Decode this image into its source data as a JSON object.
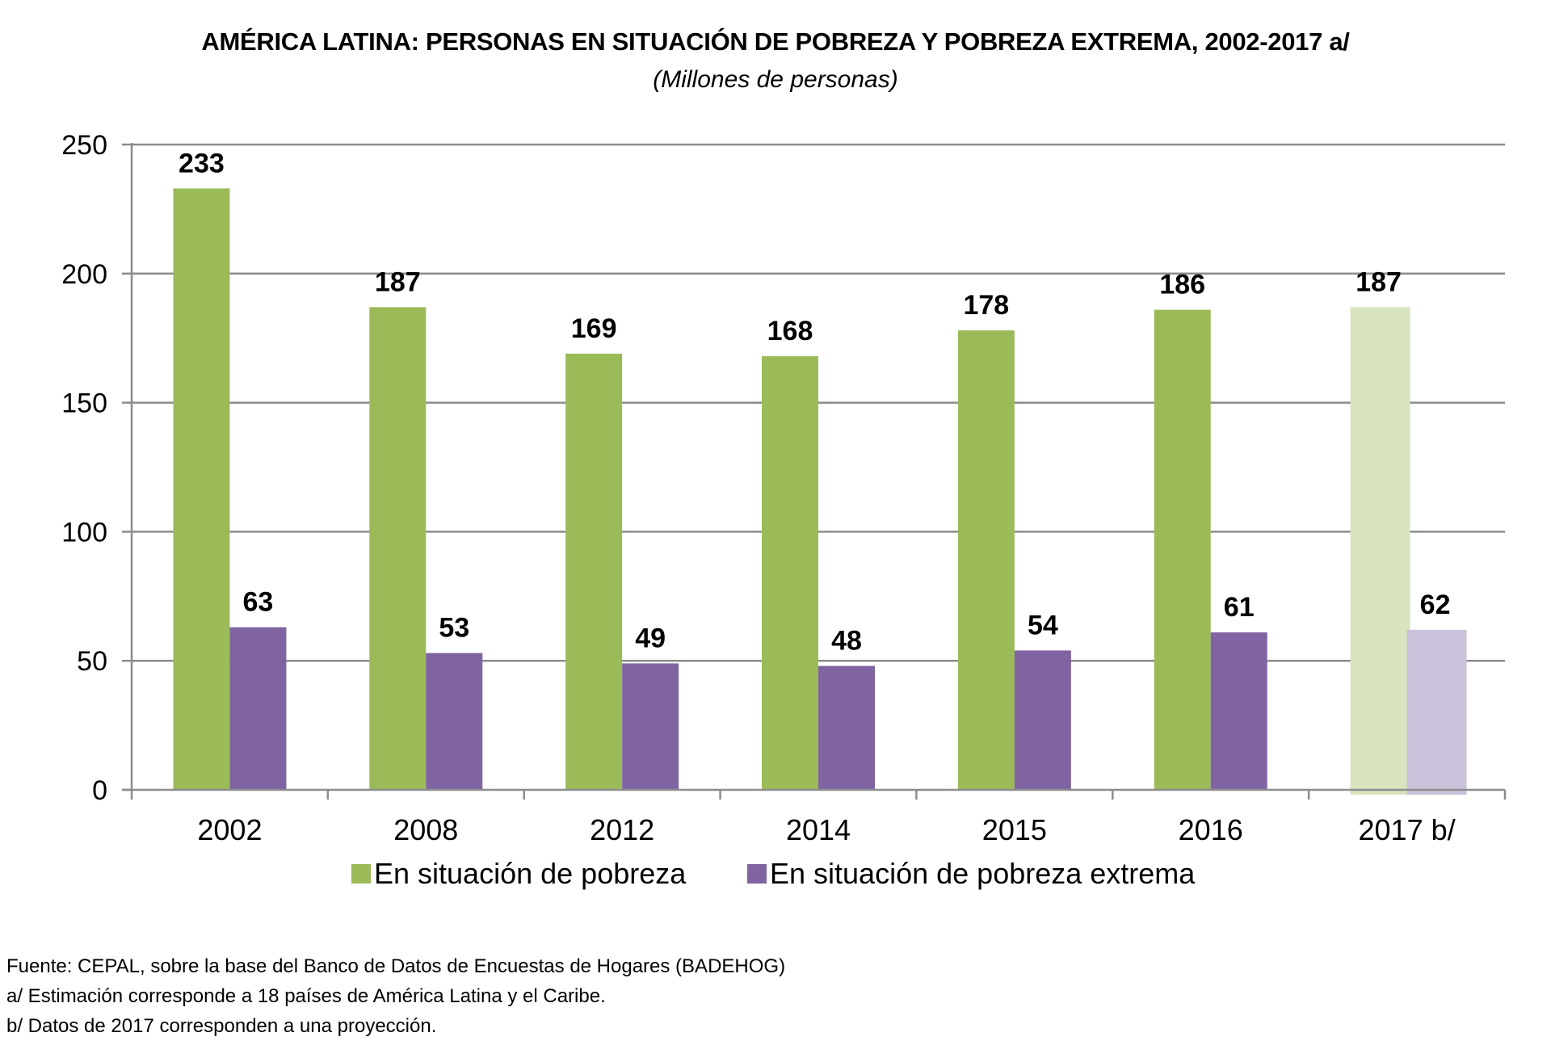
{
  "chart_data": {
    "type": "bar",
    "title": "AMÉRICA LATINA: PERSONAS EN SITUACIÓN DE POBREZA Y POBREZA EXTREMA, 2002-2017 a/",
    "subtitle": "(Millones de personas)",
    "categories": [
      "2002",
      "2008",
      "2012",
      "2014",
      "2015",
      "2016",
      "2017 b/"
    ],
    "ylim": [
      0,
      250
    ],
    "yticks": [
      0,
      50,
      100,
      150,
      200,
      250
    ],
    "grid": true,
    "legend_position": "bottom",
    "projected_category_index": 6,
    "series": [
      {
        "name": "En situación de pobreza",
        "values": [
          233,
          187,
          169,
          168,
          178,
          186,
          187
        ],
        "color": "#9bbb59",
        "projected_color": "#d7e4bd"
      },
      {
        "name": "En situación de pobreza extrema",
        "values": [
          63,
          53,
          49,
          48,
          54,
          61,
          62
        ],
        "color": "#8064a2",
        "projected_color": "#ccc1da"
      }
    ]
  },
  "notes": [
    "Fuente: CEPAL, sobre la base del Banco de Datos de Encuestas de Hogares (BADEHOG)",
    "a/ Estimación corresponde a 18 países de América Latina y el Caribe.",
    "b/ Datos de 2017 corresponden a una proyección."
  ]
}
